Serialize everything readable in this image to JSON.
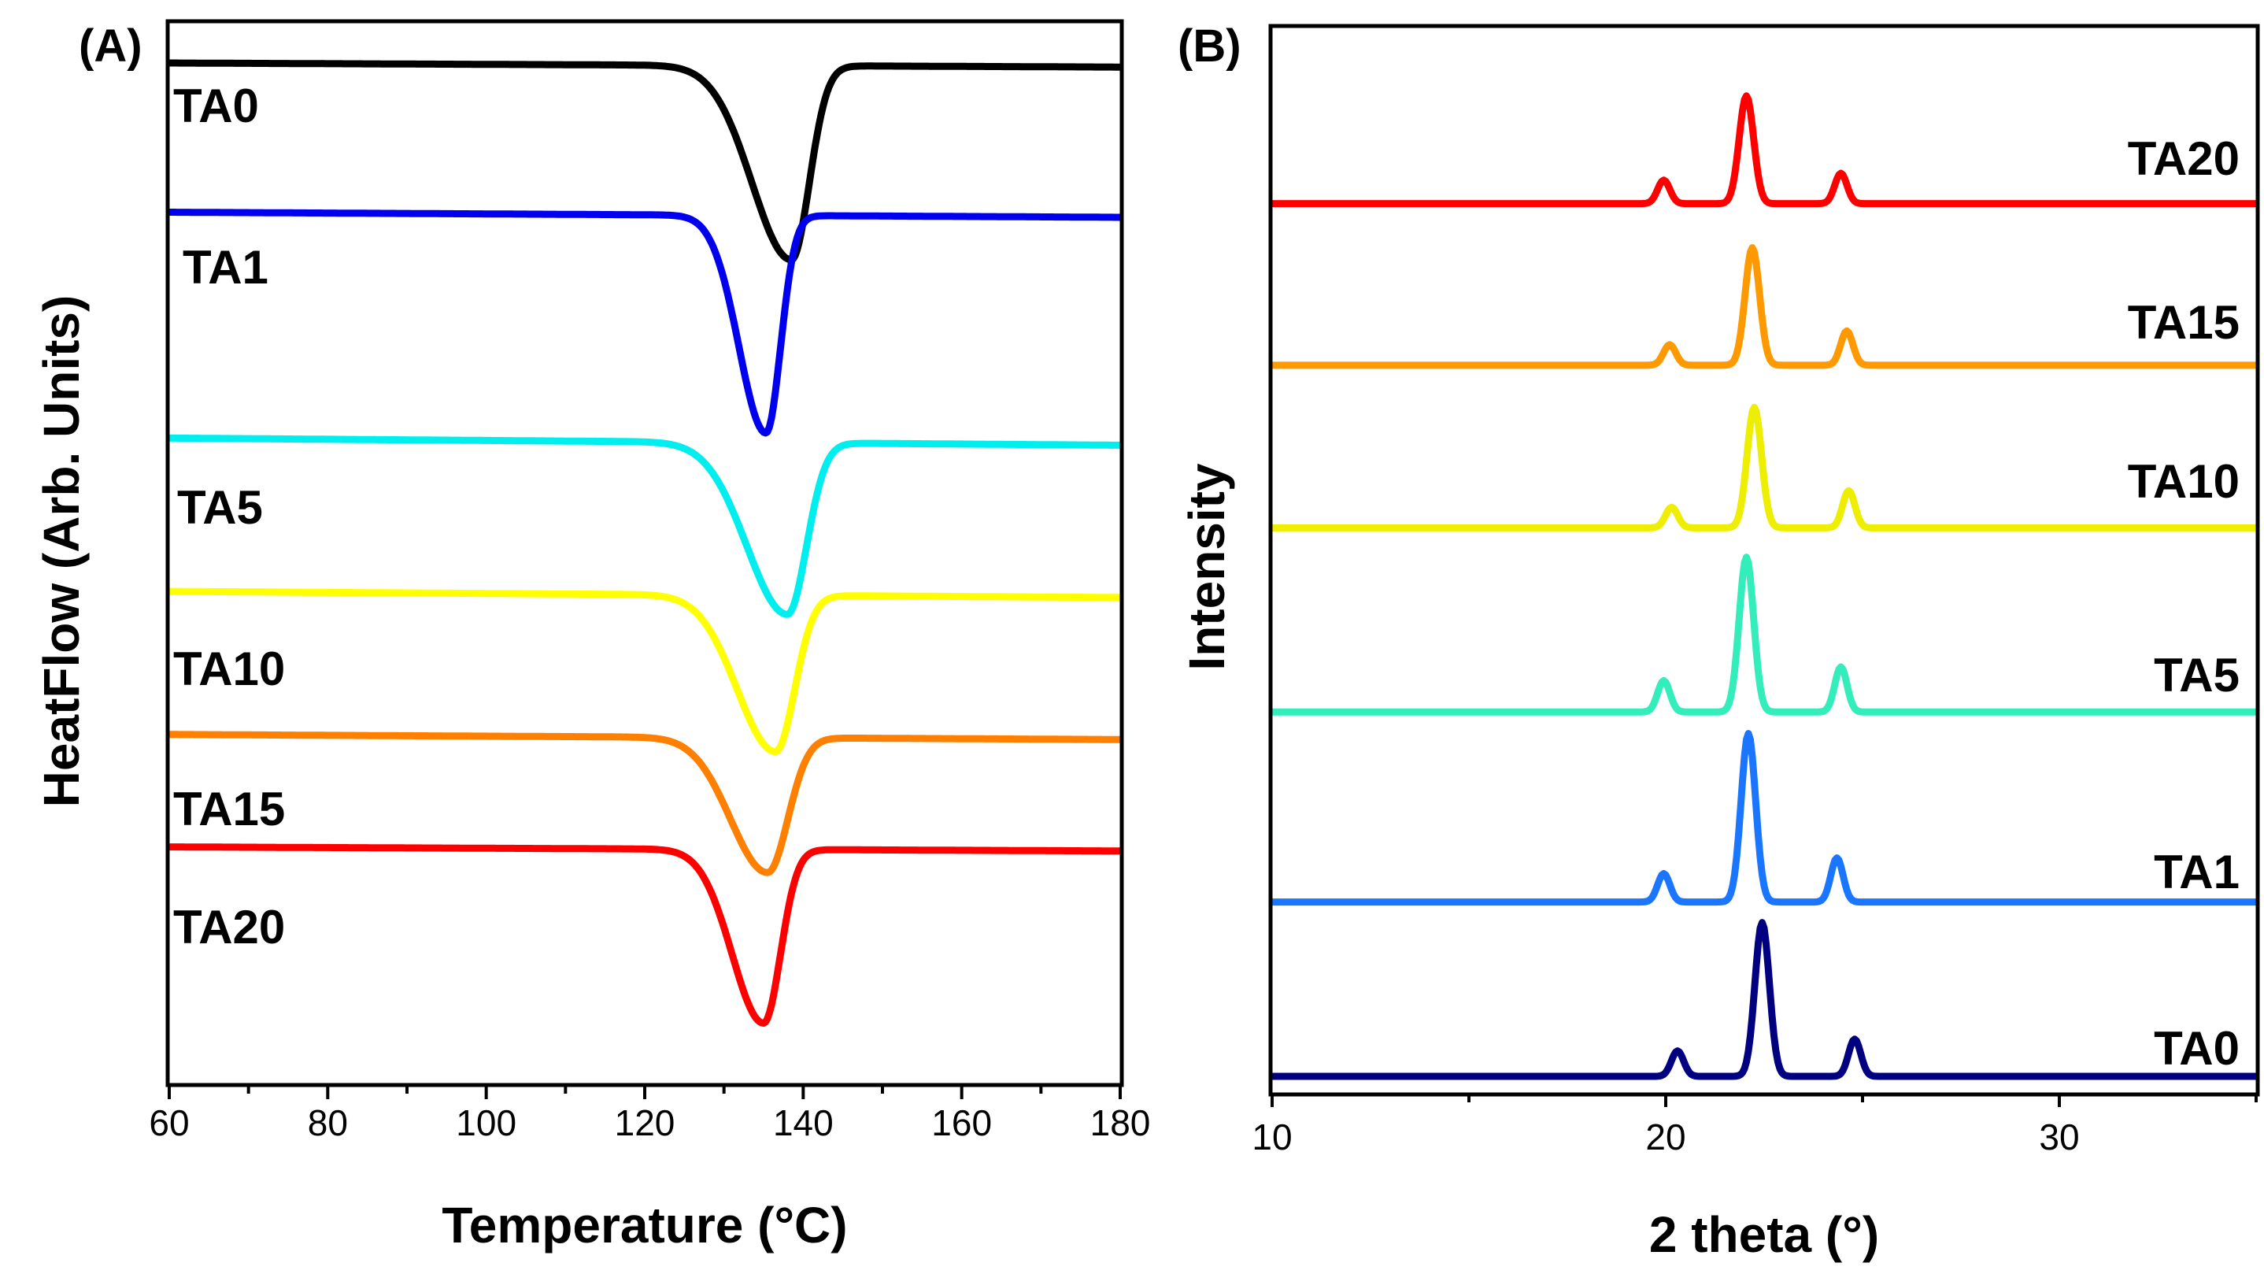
{
  "chart_data": [
    {
      "panel": "(A)",
      "type": "line",
      "xlabel": "Temperature (°C)",
      "ylabel": "HeatFlow (Arb. Units)",
      "xlim": [
        60,
        180
      ],
      "x_ticks": [
        "60",
        "80",
        "100",
        "120",
        "140",
        "160",
        "180"
      ],
      "x_tick_values": [
        60,
        80,
        100,
        120,
        140,
        160,
        180
      ],
      "y_ticks": [],
      "ylim": [
        0,
        100
      ],
      "series": [
        {
          "name": "TA0",
          "color": "#000000",
          "baseline": 100,
          "depth": 19,
          "peak_x": 138.5,
          "width_left": 7.0,
          "width_right": 3.2,
          "drift": 0.4
        },
        {
          "name": "TA1",
          "color": "#0000ee",
          "baseline": 85.4,
          "depth": 21.3,
          "peak_x": 135.3,
          "width_left": 4.8,
          "width_right": 2.6,
          "drift": 0.5
        },
        {
          "name": "TA5",
          "color": "#00eeee",
          "baseline": 63.3,
          "depth": 16.8,
          "peak_x": 138.0,
          "width_left": 7.2,
          "width_right": 3.4,
          "drift": 0.7
        },
        {
          "name": "TA10",
          "color": "#ffff00",
          "baseline": 48.3,
          "depth": 15.3,
          "peak_x": 136.5,
          "width_left": 6.8,
          "width_right": 3.4,
          "drift": 0.6
        },
        {
          "name": "TA15",
          "color": "#ff8000",
          "baseline": 34.3,
          "depth": 13.2,
          "peak_x": 135.5,
          "width_left": 6.6,
          "width_right": 3.6,
          "drift": 0.5
        },
        {
          "name": "TA20",
          "color": "#ff0000",
          "baseline": 23.3,
          "depth": 17.0,
          "peak_x": 135.0,
          "width_left": 5.6,
          "width_right": 3.0,
          "drift": 0.4
        }
      ]
    },
    {
      "panel": "(B)",
      "type": "line",
      "xlabel": "2 theta (°)",
      "ylabel": "Intensity",
      "xlim": [
        10,
        35
      ],
      "x_ticks": [
        "10",
        "20",
        "30"
      ],
      "x_tick_values": [
        10,
        20,
        30
      ],
      "x_minor_tick_values": [
        15,
        25,
        35
      ],
      "y_ticks": [],
      "ylim": [
        0,
        100
      ],
      "series": [
        {
          "name": "TA20",
          "color": "#ff0000",
          "baseline": 89.5,
          "peaks": [
            {
              "x": 19.95,
              "h": 2.4
            },
            {
              "x": 22.05,
              "h": 11.0
            },
            {
              "x": 24.45,
              "h": 3.1
            }
          ]
        },
        {
          "name": "TA15",
          "color": "#ff9900",
          "baseline": 73.0,
          "peaks": [
            {
              "x": 20.1,
              "h": 2.1
            },
            {
              "x": 22.2,
              "h": 12.0
            },
            {
              "x": 24.6,
              "h": 3.5
            }
          ]
        },
        {
          "name": "TA10",
          "color": "#eeee00",
          "baseline": 56.4,
          "peaks": [
            {
              "x": 20.15,
              "h": 2.1
            },
            {
              "x": 22.25,
              "h": 12.3
            },
            {
              "x": 24.65,
              "h": 3.8
            }
          ]
        },
        {
          "name": "TA5",
          "color": "#33eebb",
          "baseline": 37.6,
          "peaks": [
            {
              "x": 19.95,
              "h": 3.2
            },
            {
              "x": 22.05,
              "h": 15.8
            },
            {
              "x": 24.45,
              "h": 4.6
            }
          ]
        },
        {
          "name": "TA1",
          "color": "#1a75ff",
          "baseline": 18.2,
          "peaks": [
            {
              "x": 19.95,
              "h": 2.9
            },
            {
              "x": 22.1,
              "h": 17.2
            },
            {
              "x": 24.35,
              "h": 4.5
            }
          ]
        },
        {
          "name": "TA0",
          "color": "#000080",
          "baseline": 0.4,
          "peaks": [
            {
              "x": 20.3,
              "h": 2.6
            },
            {
              "x": 22.45,
              "h": 15.7
            },
            {
              "x": 24.8,
              "h": 3.8
            }
          ]
        }
      ]
    }
  ]
}
